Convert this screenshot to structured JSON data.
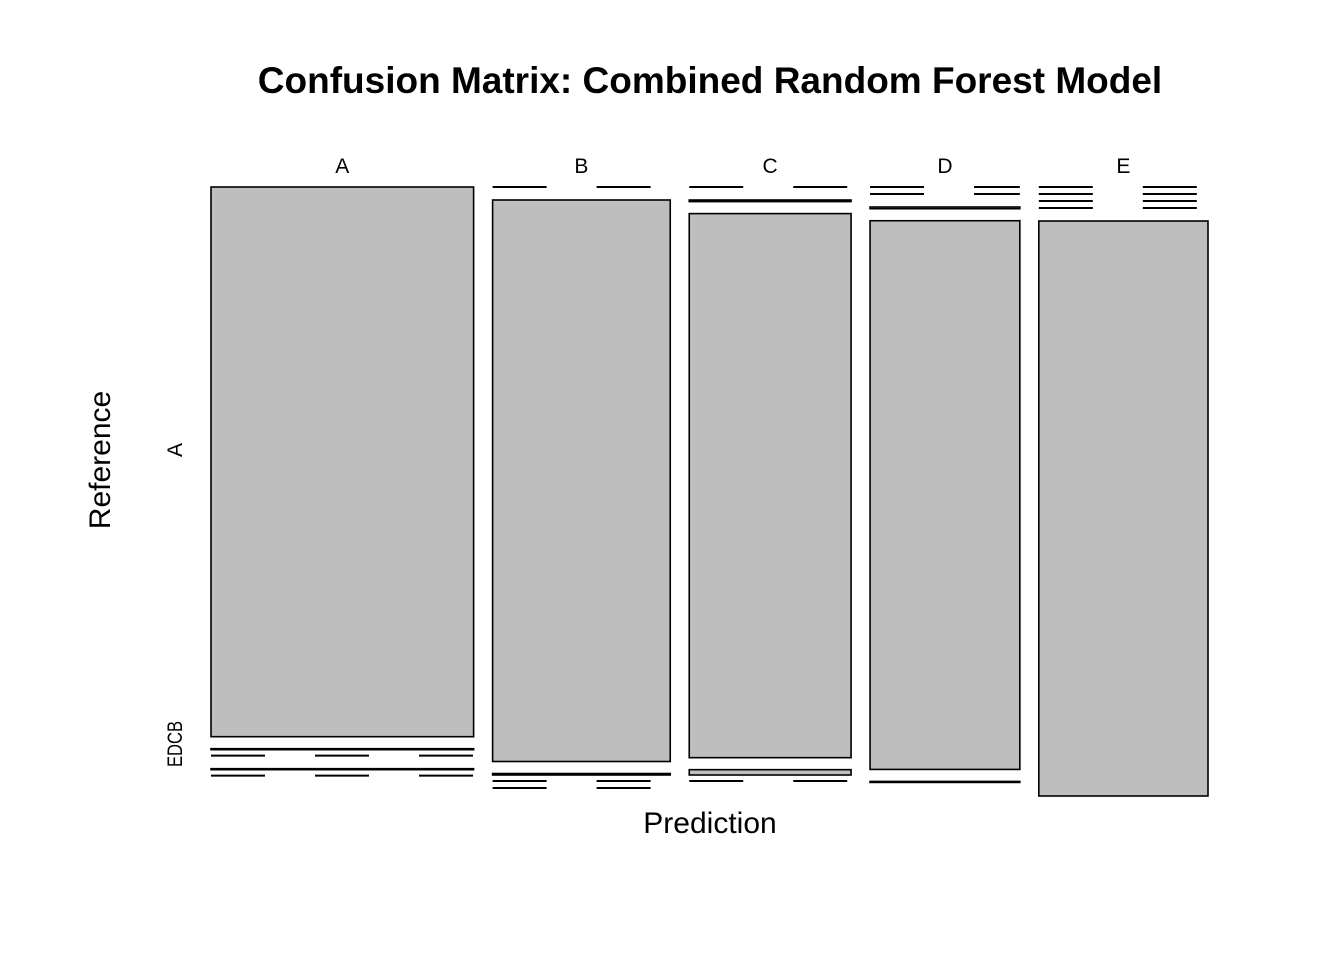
{
  "chart_data": {
    "type": "mosaic",
    "title": "Confusion Matrix: Combined Random Forest Model",
    "xlabel": "Prediction",
    "ylabel": "Reference",
    "x_categories": [
      "A",
      "B",
      "C",
      "D",
      "E"
    ],
    "y_categories": [
      "A",
      "B",
      "C",
      "D",
      "E"
    ],
    "y_tick_labels": [
      "A",
      "EDCB"
    ],
    "fill_color": "#bebebe",
    "stroke_color": "#000000",
    "columns": [
      {
        "prediction": "A",
        "counts": {
          "A": 1674,
          "B": 3,
          "C": 0,
          "D": 1,
          "E": 0
        }
      },
      {
        "prediction": "B",
        "counts": {
          "A": 0,
          "B": 1132,
          "C": 3,
          "D": 0,
          "E": 0
        }
      },
      {
        "prediction": "C",
        "counts": {
          "A": 0,
          "B": 3,
          "C": 1021,
          "D": 10,
          "E": 0
        }
      },
      {
        "prediction": "D",
        "counts": {
          "A": 0,
          "B": 0,
          "C": 3,
          "D": 953,
          "E": 1
        }
      },
      {
        "prediction": "E",
        "counts": {
          "A": 0,
          "B": 0,
          "C": 0,
          "D": 0,
          "E": 1081
        }
      }
    ]
  }
}
